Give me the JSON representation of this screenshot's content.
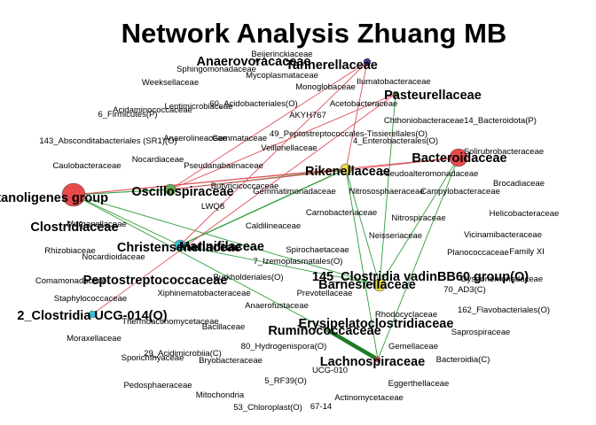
{
  "title": "Network Analysis Zhuang MB",
  "colors": {
    "positive_edge": "#2e9e3a",
    "negative_edge": "#e0505a",
    "strong_edge": "#1f7a25"
  },
  "minor_labels": [
    "Beijerinckiaceae",
    "Sphingomonadaceae",
    "Mycoplasmataceae",
    "Weeksellaceae",
    "Monoglobaceae",
    "Ilumatobacteraceae",
    "60_Acidobacteriales(O)",
    "Lentimicrobiaceae",
    "Acidaminococcaceae",
    "Acetobacteraceae",
    "6_Firmicutes(P)",
    "AKYH767",
    "Chthoniobacteraceae",
    "14_Bacteroidota(P)",
    "49_Peptostreptococcales-Tissierellales(O)",
    "143_Absconditabacteriales (SR1)(O)",
    "Anaerolineaceae",
    "Gemmataceae",
    "4_Enterobacterales(O)",
    "Veillonellaceae",
    "Solirubrobacteraceae",
    "Nocardiaceae",
    "Caulobacteraceae",
    "Pseudanabaenaceae",
    "Pseudoalteromonadaceae",
    "Brocadiaceae",
    "Butyricicoccaceae",
    "Gemmatimonadaceae",
    "Nitrososphaeraceae",
    "Campylobacteraceae",
    "LWQ8",
    "Carnobacteriaceae",
    "Helicobacteraceae",
    "Nitrospiraceae",
    "Morganellaceae",
    "Caldilineaceae",
    "Vicinamibacteraceae",
    "Neisseriaceae",
    "Rhizobiaceae",
    "Spirochaetaceae",
    "Planococcaceae",
    "Family XI",
    "Nocardioidaceae",
    "7_Izemoplasmatales(O)",
    "Comamonadaceae",
    "Burkholderiales(O)",
    "Dysgonomonadaceae",
    "Xiphinematobacteraceae",
    "Prevotellaceae",
    "70_AD3(C)",
    "Staphylococcaceae",
    "Anaerofustaceae",
    "162_Flavobacteriales(O)",
    "Thermoactinomycetaceae",
    "Rhodocyclaceae",
    "Bacillaceae",
    "Saprospiraceae",
    "Moraxellaceae",
    "80_Hydrogenispora(O)",
    "Gemellaceae",
    "29_Acidimicrobiia(C)",
    "Sporichthyaceae",
    "Bryobacteraceae",
    "UCG-010",
    "Bacteroidia(C)",
    "5_RF39(O)",
    "Pedosphaeraceae",
    "Eggerthellaceae",
    "Mitochondria",
    "Actinomycetaceae",
    "53_Chloroplast(O)",
    "67-14"
  ],
  "major_labels": [
    "Anaerovoracaceae",
    "Tannerellaceae",
    "Pasteurellaceae",
    "Rikenellaceae",
    "Bacteroidaceae",
    "[Eubacterium] coprostanoligenes group",
    "Oscillospiraceae",
    "Clostridiaceae",
    "Christensenellaceae",
    "Marinifilaceae",
    "Peptostreptococcaceae",
    "145_Clostridia vadinBB60 group(O)",
    "Barnesiellaceae",
    "2_Clostridia UCG-014(O)",
    "Erysipelatoclostridiaceae",
    "Ruminococcaceae",
    "Lachnospiraceae"
  ]
}
